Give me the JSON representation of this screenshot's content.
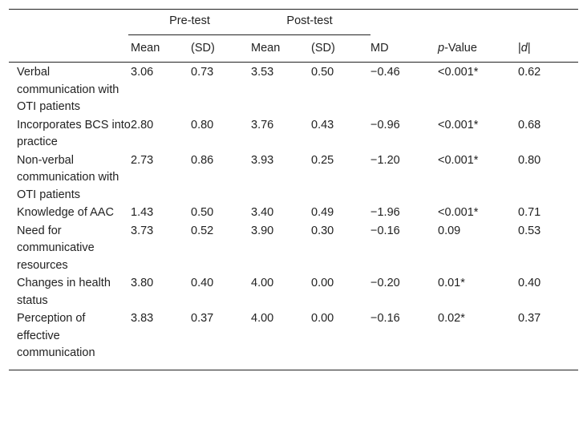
{
  "header": {
    "group_pre": "Pre-test",
    "group_post": "Post-test",
    "columns": [
      "",
      "Mean",
      "(SD)",
      "Mean",
      "(SD)",
      "MD",
      "p-Value",
      "|d|"
    ]
  },
  "rows": [
    {
      "label": "Verbal communication with OTI patients",
      "pre_mean": "3.06",
      "pre_sd": "0.73",
      "post_mean": "3.53",
      "post_sd": "0.50",
      "md": "−0.46",
      "p": "<0.001*",
      "d": "0.62"
    },
    {
      "label": "Incorporates BCS into practice",
      "pre_mean": "2.80",
      "pre_sd": "0.80",
      "post_mean": "3.76",
      "post_sd": "0.43",
      "md": "−0.96",
      "p": "<0.001*",
      "d": "0.68"
    },
    {
      "label": "Non-verbal communication with OTI patients",
      "pre_mean": "2.73",
      "pre_sd": "0.86",
      "post_mean": "3.93",
      "post_sd": "0.25",
      "md": "−1.20",
      "p": "<0.001*",
      "d": "0.80"
    },
    {
      "label": "Knowledge of AAC",
      "pre_mean": "1.43",
      "pre_sd": "0.50",
      "post_mean": "3.40",
      "post_sd": "0.49",
      "md": "−1.96",
      "p": "<0.001*",
      "d": "0.71"
    },
    {
      "label": "Need for communicative resources",
      "pre_mean": "3.73",
      "pre_sd": "0.52",
      "post_mean": "3.90",
      "post_sd": "0.30",
      "md": "−0.16",
      "p": "0.09",
      "d": "0.53"
    },
    {
      "label": "Changes in health status",
      "pre_mean": "3.80",
      "pre_sd": "0.40",
      "post_mean": "4.00",
      "post_sd": "0.00",
      "md": "−0.20",
      "p": "0.01*",
      "d": "0.40"
    },
    {
      "label": "Perception of effective communication",
      "pre_mean": "3.83",
      "pre_sd": "0.37",
      "post_mean": "4.00",
      "post_sd": "0.00",
      "md": "−0.16",
      "p": "0.02*",
      "d": "0.37"
    }
  ]
}
